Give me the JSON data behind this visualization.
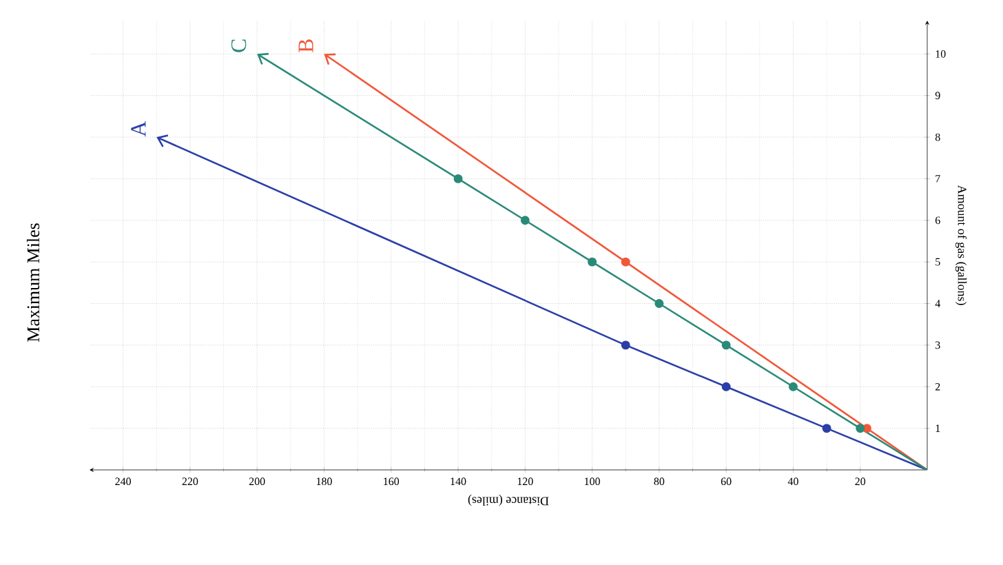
{
  "chart_data": {
    "type": "line",
    "title": "Maximum Miles",
    "xlabel": "Distance (miles)",
    "ylabel": "Amount of gas (gallons)",
    "xlim": [
      250,
      0
    ],
    "xticks": [
      20,
      40,
      60,
      80,
      100,
      120,
      140,
      160,
      180,
      200,
      220,
      240
    ],
    "ylim": [
      0,
      10.8
    ],
    "yticks": [
      1,
      2,
      3,
      4,
      5,
      6,
      7,
      8,
      9,
      10
    ],
    "grid": true,
    "marker": "circle",
    "legend": "top left",
    "series": [
      {
        "name": "A",
        "color": "#2b3fa8",
        "x": [
          0,
          30,
          60,
          90,
          230
        ],
        "values": [
          0,
          1,
          2,
          3,
          8
        ]
      },
      {
        "name": "B",
        "color": "#f0583a",
        "x": [
          0,
          18,
          90,
          180
        ],
        "values": [
          0,
          1,
          5,
          10
        ]
      },
      {
        "name": "C",
        "color": "#2a8a78",
        "x": [
          0,
          20,
          40,
          60,
          80,
          100,
          120,
          140,
          200
        ],
        "values": [
          0,
          1,
          2,
          3,
          4,
          5,
          6,
          7,
          10
        ]
      }
    ]
  }
}
